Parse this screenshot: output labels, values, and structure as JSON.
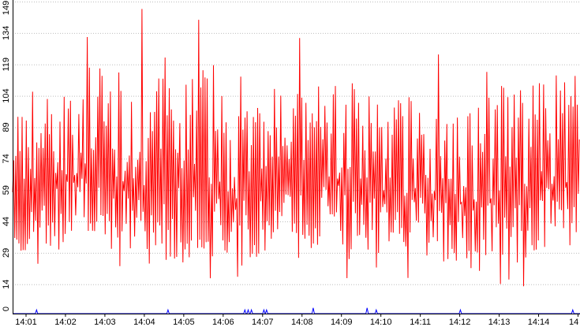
{
  "chart_data": {
    "type": "line",
    "title": "",
    "xlabel": "",
    "ylabel": "",
    "grid": true,
    "legend": "none",
    "ylim": [
      0,
      149
    ],
    "y_ticks": [
      0,
      14,
      29,
      44,
      59,
      74,
      89,
      104,
      119,
      134,
      149
    ],
    "x_ticks": [
      "14:01",
      "14:02",
      "14:03",
      "14:04",
      "14:05",
      "14:06",
      "14:07",
      "14:08",
      "14:09",
      "14:10",
      "14:11",
      "14:12",
      "14:13",
      "14:14",
      "14"
    ],
    "x_range_minutes": [
      0.66,
      15.05
    ],
    "series": [
      {
        "color": "#ff0000",
        "approx_sample_interval_seconds": 1.6,
        "y_range": [
          7,
          149
        ],
        "segment_means": [
          58,
          62,
          66,
          61,
          60,
          57,
          55,
          60,
          62,
          57,
          56,
          57,
          53,
          54,
          60
        ],
        "segment_peaks": [
          133,
          129,
          140,
          146,
          138,
          149,
          128,
          132,
          130,
          124,
          127,
          128,
          126,
          140,
          141
        ],
        "segment_troughs": [
          18,
          20,
          26,
          21,
          10,
          15,
          12,
          14,
          17,
          15,
          14,
          13,
          7,
          11,
          22
        ]
      },
      {
        "color": "#0000ff",
        "baseline": 0,
        "spikes": [
          {
            "t": "14:01:16",
            "value": 1
          },
          {
            "t": "14:04:36",
            "value": 1
          },
          {
            "t": "14:06:33",
            "value": 1
          },
          {
            "t": "14:06:38",
            "value": 1
          },
          {
            "t": "14:06:43",
            "value": 1
          },
          {
            "t": "14:07:02",
            "value": 1
          },
          {
            "t": "14:07:06",
            "value": 1
          },
          {
            "t": "14:08:17",
            "value": 2
          },
          {
            "t": "14:09:39",
            "value": 2
          },
          {
            "t": "14:09:53",
            "value": 1
          },
          {
            "t": "14:12:01",
            "value": 1
          },
          {
            "t": "14:14:52",
            "value": 1
          }
        ]
      }
    ]
  }
}
